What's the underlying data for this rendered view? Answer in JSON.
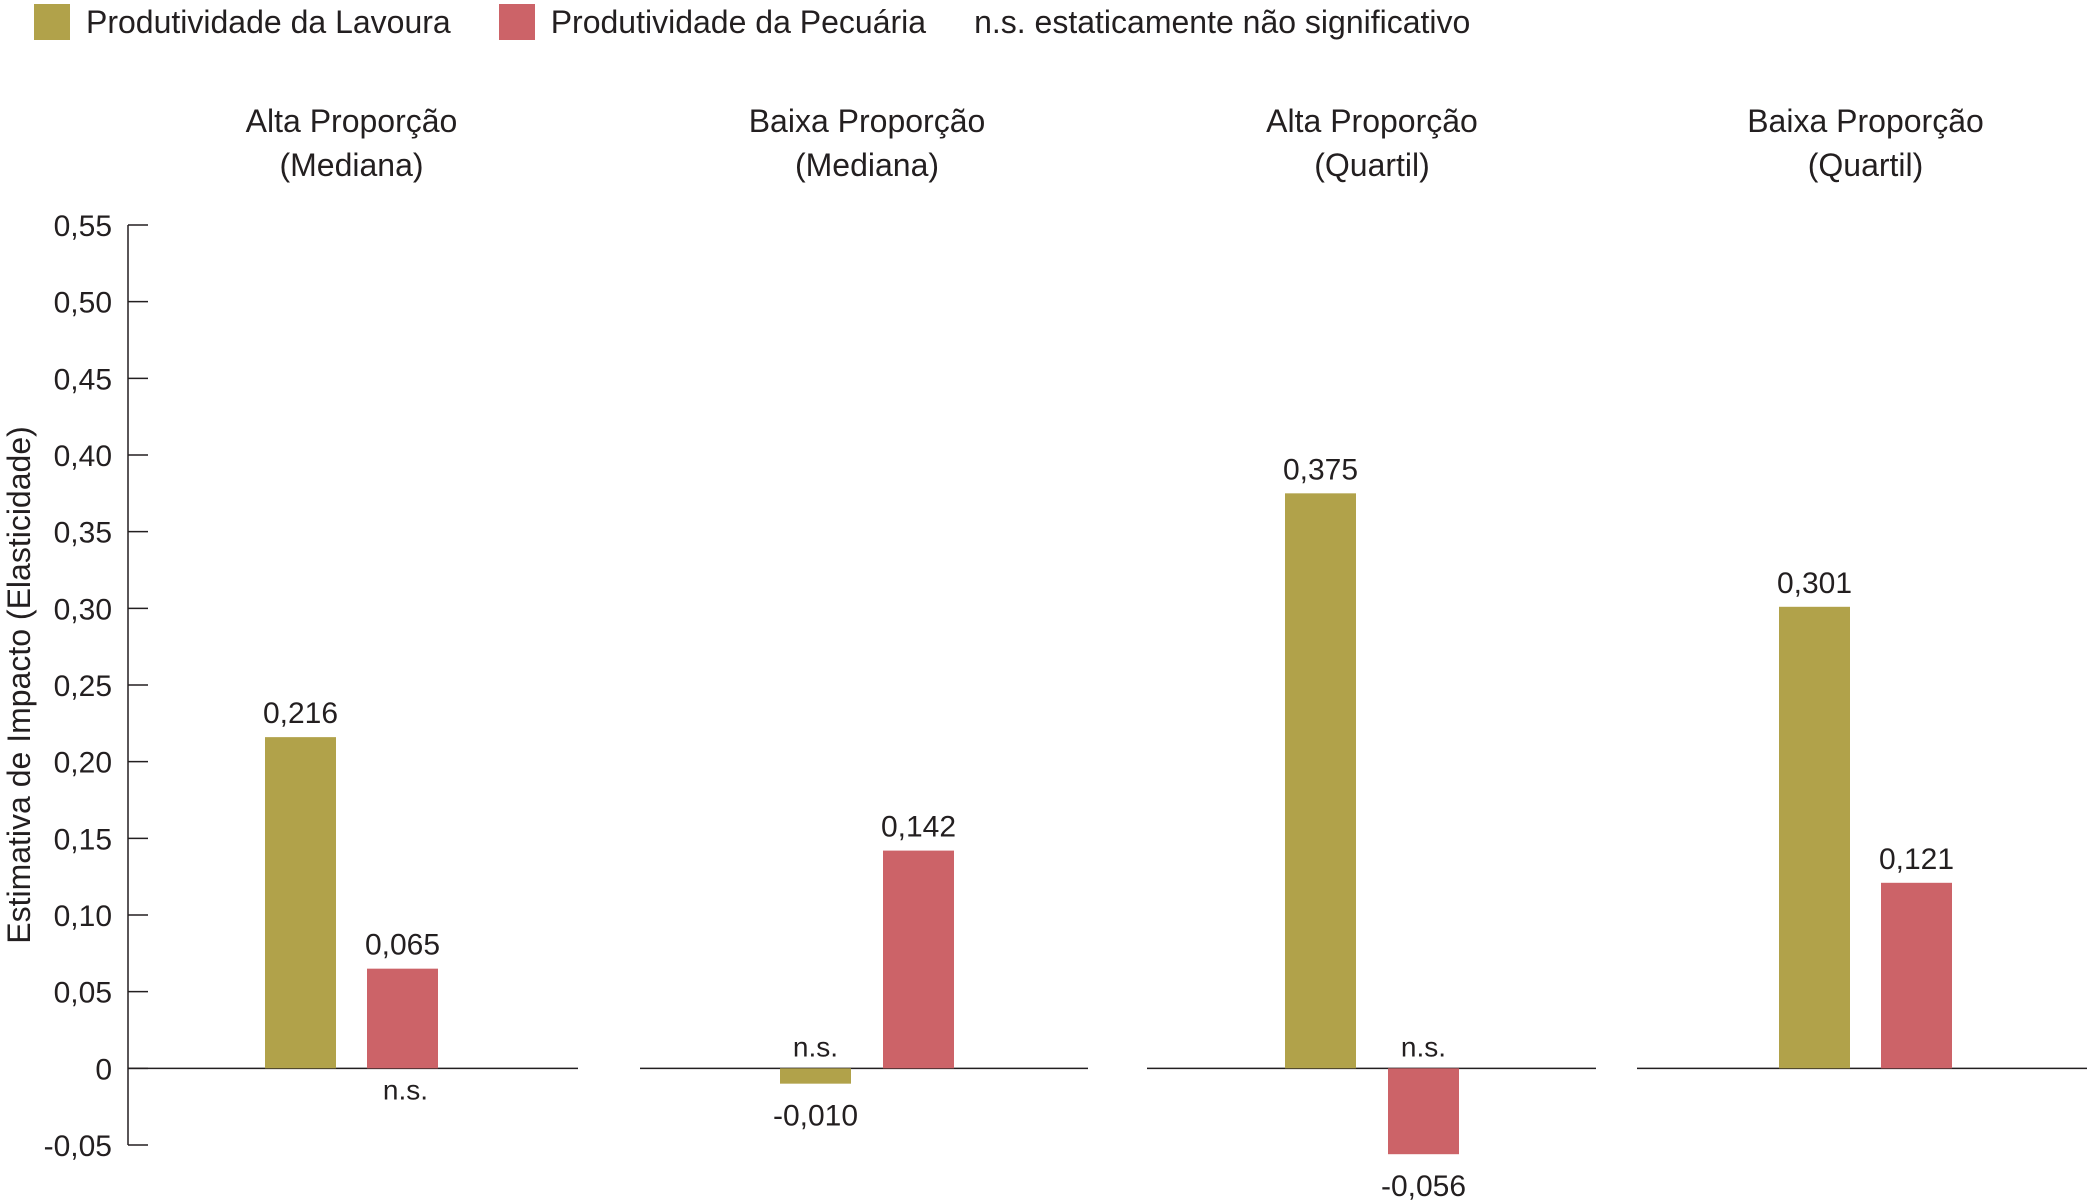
{
  "chart_data": {
    "type": "bar",
    "title": "",
    "ylabel": "Estimativa de Impacto (Elasticidade)",
    "xlabel": "",
    "ylim": [
      -0.05,
      0.55
    ],
    "yticks": [
      -0.05,
      0,
      0.05,
      0.1,
      0.15,
      0.2,
      0.25,
      0.3,
      0.35,
      0.4,
      0.45,
      0.5,
      0.55
    ],
    "ytick_labels": [
      "-0,05",
      "0",
      "0,05",
      "0,10",
      "0,15",
      "0,20",
      "0,25",
      "0,30",
      "0,35",
      "0,40",
      "0,45",
      "0,50",
      "0,55"
    ],
    "categories": [
      [
        "Alta Proporção",
        "(Mediana)"
      ],
      [
        "Baixa Proporção",
        "(Mediana)"
      ],
      [
        "Alta Proporção",
        "(Quartil)"
      ],
      [
        "Baixa Proporção",
        "(Quartil)"
      ]
    ],
    "series": [
      {
        "name": "Produtividade da Lavoura",
        "color": "#b1a24a",
        "values": [
          0.216,
          -0.01,
          0.375,
          0.301
        ],
        "value_labels": [
          "0,216",
          "-0,010",
          "0,375",
          "0,301"
        ],
        "significance": [
          "",
          "n.s.",
          "",
          ""
        ]
      },
      {
        "name": "Produtividade da Pecuária",
        "color": "#cc6368",
        "values": [
          0.065,
          0.142,
          -0.056,
          0.121
        ],
        "value_labels": [
          "0,065",
          "0,142",
          "-0,056",
          "0,121"
        ],
        "significance": [
          "n.s.",
          "",
          "n.s.",
          ""
        ]
      }
    ],
    "legend_position": "top-left",
    "legend_note": "n.s. estaticamente não significativo",
    "grid": false
  },
  "colors": {
    "text": "#231f20",
    "axis": "#231f20"
  }
}
